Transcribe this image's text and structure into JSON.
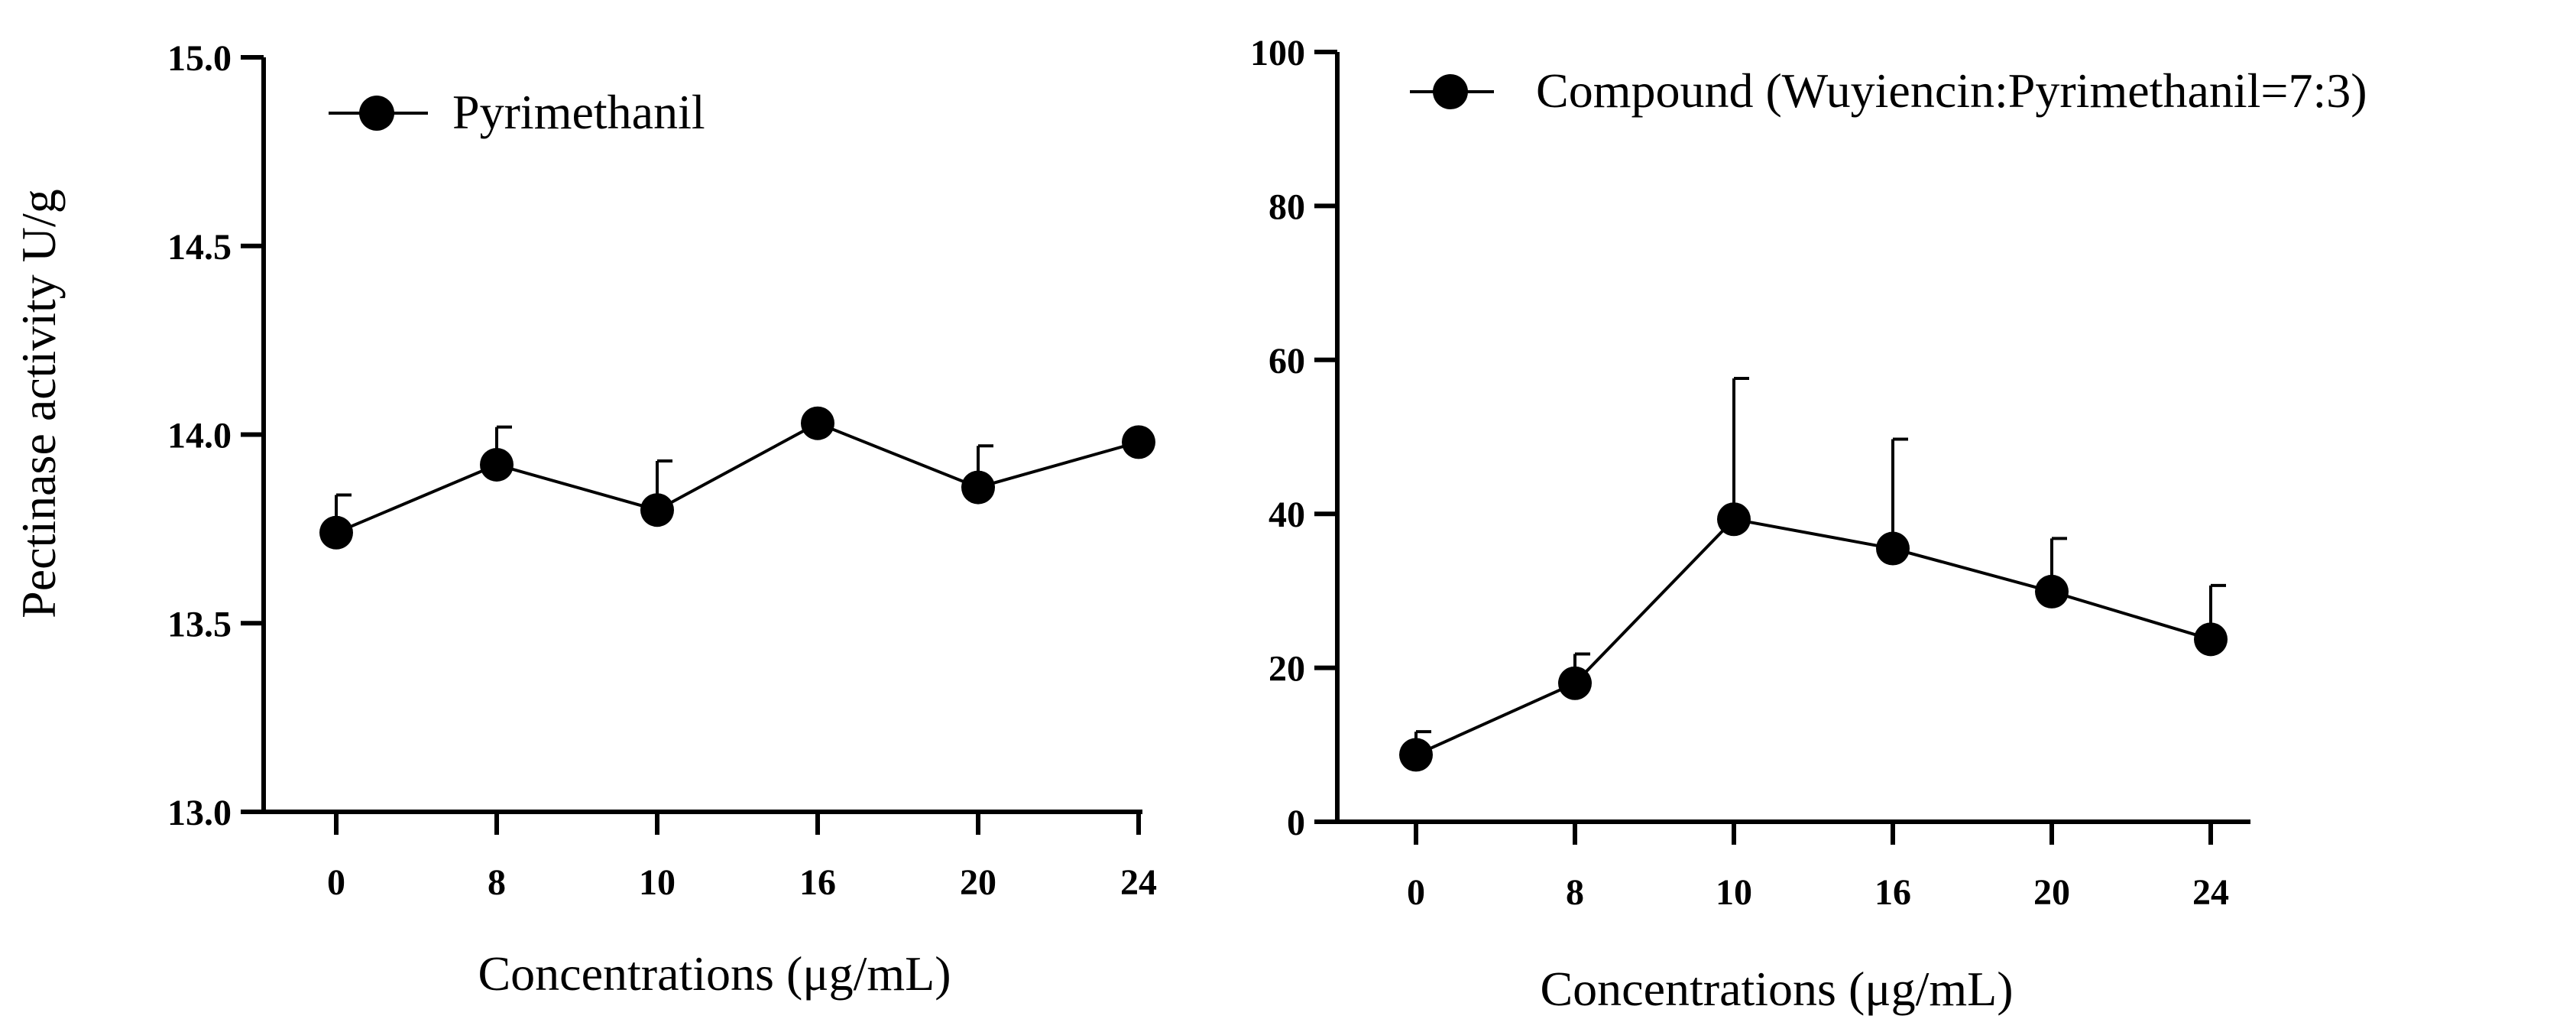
{
  "chart_data": [
    {
      "type": "line",
      "title": "",
      "xlabel": "Concentrations (μg/mL)",
      "ylabel": "Pectinase activity  U/g",
      "categories": [
        "0",
        "8",
        "10",
        "16",
        "20",
        "24"
      ],
      "ylim": [
        13.0,
        15.0
      ],
      "yticks": [
        "13.0",
        "13.5",
        "14.0",
        "14.5",
        "15.0"
      ],
      "legend_position": "top-left",
      "series": [
        {
          "name": "Pyrimethanil",
          "values": [
            13.74,
            13.92,
            13.8,
            14.03,
            13.86,
            13.98
          ],
          "error_upper": [
            0.1,
            0.1,
            0.13,
            0.0,
            0.11,
            0.0
          ]
        }
      ]
    },
    {
      "type": "line",
      "title": "",
      "xlabel": "Concentrations (μg/mL)",
      "ylabel": "",
      "categories": [
        "0",
        "8",
        "10",
        "16",
        "20",
        "24"
      ],
      "ylim": [
        0,
        100
      ],
      "yticks": [
        "0",
        "20",
        "40",
        "60",
        "80",
        "100"
      ],
      "legend_position": "top-left",
      "series": [
        {
          "name": "Compound (Wuyiencin:Pyrimethanil=7:3)",
          "values": [
            8.7,
            18.0,
            39.3,
            35.5,
            29.9,
            23.7
          ],
          "error_upper": [
            3.0,
            3.8,
            18.3,
            14.2,
            6.9,
            7.0
          ]
        }
      ]
    }
  ]
}
